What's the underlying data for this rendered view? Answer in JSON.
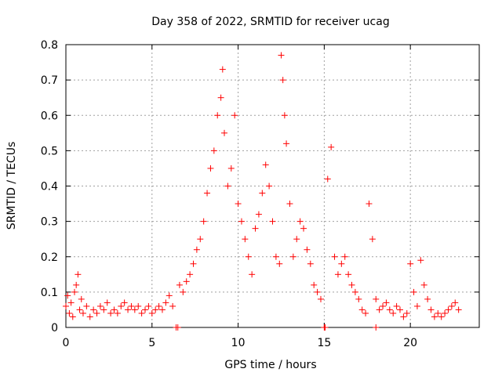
{
  "chart_data": {
    "type": "scatter",
    "title": "Day 358 of 2022, SRMTID for receiver ucag",
    "xlabel": "GPS time / hours",
    "ylabel": "SRMTID / TECUs",
    "xlim": [
      0,
      24
    ],
    "ylim": [
      0,
      0.8
    ],
    "xticks": [
      0,
      5,
      10,
      15,
      20
    ],
    "yticks": [
      0,
      0.1,
      0.2,
      0.3,
      0.4,
      0.5,
      0.6,
      0.7,
      0.8
    ],
    "grid": true,
    "marker": "plus",
    "color": "#ff0000",
    "series": [
      {
        "name": "SRMTID",
        "points": [
          [
            0.0,
            0.06
          ],
          [
            0.1,
            0.09
          ],
          [
            0.2,
            0.04
          ],
          [
            0.3,
            0.07
          ],
          [
            0.4,
            0.03
          ],
          [
            0.5,
            0.1
          ],
          [
            0.6,
            0.12
          ],
          [
            0.7,
            0.15
          ],
          [
            0.8,
            0.05
          ],
          [
            0.9,
            0.08
          ],
          [
            1.0,
            0.04
          ],
          [
            1.2,
            0.06
          ],
          [
            1.4,
            0.03
          ],
          [
            1.6,
            0.05
          ],
          [
            1.8,
            0.04
          ],
          [
            2.0,
            0.06
          ],
          [
            2.2,
            0.05
          ],
          [
            2.4,
            0.07
          ],
          [
            2.6,
            0.04
          ],
          [
            2.8,
            0.05
          ],
          [
            3.0,
            0.04
          ],
          [
            3.2,
            0.06
          ],
          [
            3.4,
            0.07
          ],
          [
            3.6,
            0.05
          ],
          [
            3.8,
            0.06
          ],
          [
            4.0,
            0.05
          ],
          [
            4.2,
            0.06
          ],
          [
            4.4,
            0.04
          ],
          [
            4.6,
            0.05
          ],
          [
            4.8,
            0.06
          ],
          [
            5.0,
            0.04
          ],
          [
            5.2,
            0.05
          ],
          [
            5.4,
            0.06
          ],
          [
            5.6,
            0.05
          ],
          [
            5.8,
            0.07
          ],
          [
            6.0,
            0.09
          ],
          [
            6.2,
            0.06
          ],
          [
            6.4,
            0.0
          ],
          [
            6.6,
            0.12
          ],
          [
            6.8,
            0.1
          ],
          [
            7.0,
            0.13
          ],
          [
            7.2,
            0.15
          ],
          [
            7.4,
            0.18
          ],
          [
            7.6,
            0.22
          ],
          [
            7.8,
            0.25
          ],
          [
            8.0,
            0.3
          ],
          [
            8.2,
            0.38
          ],
          [
            8.4,
            0.45
          ],
          [
            8.6,
            0.5
          ],
          [
            8.8,
            0.6
          ],
          [
            9.0,
            0.65
          ],
          [
            9.1,
            0.73
          ],
          [
            9.2,
            0.55
          ],
          [
            9.4,
            0.4
          ],
          [
            9.6,
            0.45
          ],
          [
            9.8,
            0.6
          ],
          [
            10.0,
            0.35
          ],
          [
            10.2,
            0.3
          ],
          [
            10.4,
            0.25
          ],
          [
            10.6,
            0.2
          ],
          [
            10.8,
            0.15
          ],
          [
            11.0,
            0.28
          ],
          [
            11.2,
            0.32
          ],
          [
            11.4,
            0.38
          ],
          [
            11.6,
            0.46
          ],
          [
            11.8,
            0.4
          ],
          [
            12.0,
            0.3
          ],
          [
            12.2,
            0.2
          ],
          [
            12.4,
            0.18
          ],
          [
            12.5,
            0.77
          ],
          [
            12.6,
            0.7
          ],
          [
            12.7,
            0.6
          ],
          [
            12.8,
            0.52
          ],
          [
            13.0,
            0.35
          ],
          [
            13.2,
            0.2
          ],
          [
            13.4,
            0.25
          ],
          [
            13.6,
            0.3
          ],
          [
            13.8,
            0.28
          ],
          [
            14.0,
            0.22
          ],
          [
            14.2,
            0.18
          ],
          [
            14.4,
            0.12
          ],
          [
            14.6,
            0.1
          ],
          [
            14.8,
            0.08
          ],
          [
            15.0,
            0.0
          ],
          [
            15.2,
            0.42
          ],
          [
            15.4,
            0.51
          ],
          [
            15.6,
            0.2
          ],
          [
            15.8,
            0.15
          ],
          [
            16.0,
            0.18
          ],
          [
            16.2,
            0.2
          ],
          [
            16.4,
            0.15
          ],
          [
            16.6,
            0.12
          ],
          [
            16.8,
            0.1
          ],
          [
            17.0,
            0.08
          ],
          [
            17.2,
            0.05
          ],
          [
            17.4,
            0.04
          ],
          [
            17.6,
            0.35
          ],
          [
            17.8,
            0.25
          ],
          [
            18.0,
            0.08
          ],
          [
            18.2,
            0.05
          ],
          [
            18.4,
            0.06
          ],
          [
            18.6,
            0.07
          ],
          [
            18.8,
            0.05
          ],
          [
            19.0,
            0.04
          ],
          [
            19.2,
            0.06
          ],
          [
            19.4,
            0.05
          ],
          [
            19.6,
            0.03
          ],
          [
            19.8,
            0.04
          ],
          [
            20.0,
            0.18
          ],
          [
            20.2,
            0.1
          ],
          [
            20.4,
            0.06
          ],
          [
            20.6,
            0.19
          ],
          [
            20.8,
            0.12
          ],
          [
            21.0,
            0.08
          ],
          [
            21.2,
            0.05
          ],
          [
            21.4,
            0.03
          ],
          [
            21.6,
            0.04
          ],
          [
            21.8,
            0.03
          ],
          [
            22.0,
            0.04
          ],
          [
            22.2,
            0.05
          ],
          [
            22.4,
            0.06
          ],
          [
            22.6,
            0.07
          ],
          [
            22.8,
            0.05
          ],
          [
            6.5,
            0.0
          ],
          [
            18.0,
            0.0
          ],
          [
            15.05,
            0.0
          ]
        ]
      }
    ]
  }
}
